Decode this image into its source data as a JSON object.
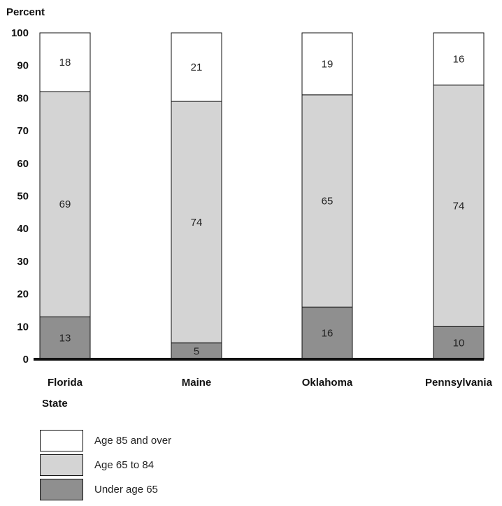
{
  "chart_data": {
    "type": "bar",
    "stacked": true,
    "ylabel": "Percent",
    "xlabel": "State",
    "ylim": [
      0,
      100
    ],
    "yticks": [
      0,
      10,
      20,
      30,
      40,
      50,
      60,
      70,
      80,
      90,
      100
    ],
    "categories": [
      "Florida",
      "Maine",
      "Oklahoma",
      "Pennsylvania"
    ],
    "series": [
      {
        "name": "Under age 65",
        "color": "#8f8f8f",
        "values": [
          13,
          5,
          16,
          10
        ]
      },
      {
        "name": "Age 65 to 84",
        "color": "#d4d4d4",
        "values": [
          69,
          74,
          65,
          74
        ]
      },
      {
        "name": "Age 85 and over",
        "color": "#ffffff",
        "values": [
          18,
          21,
          19,
          16
        ]
      }
    ],
    "legend_order": [
      2,
      1,
      0
    ],
    "legend_position": "bottom-left"
  }
}
